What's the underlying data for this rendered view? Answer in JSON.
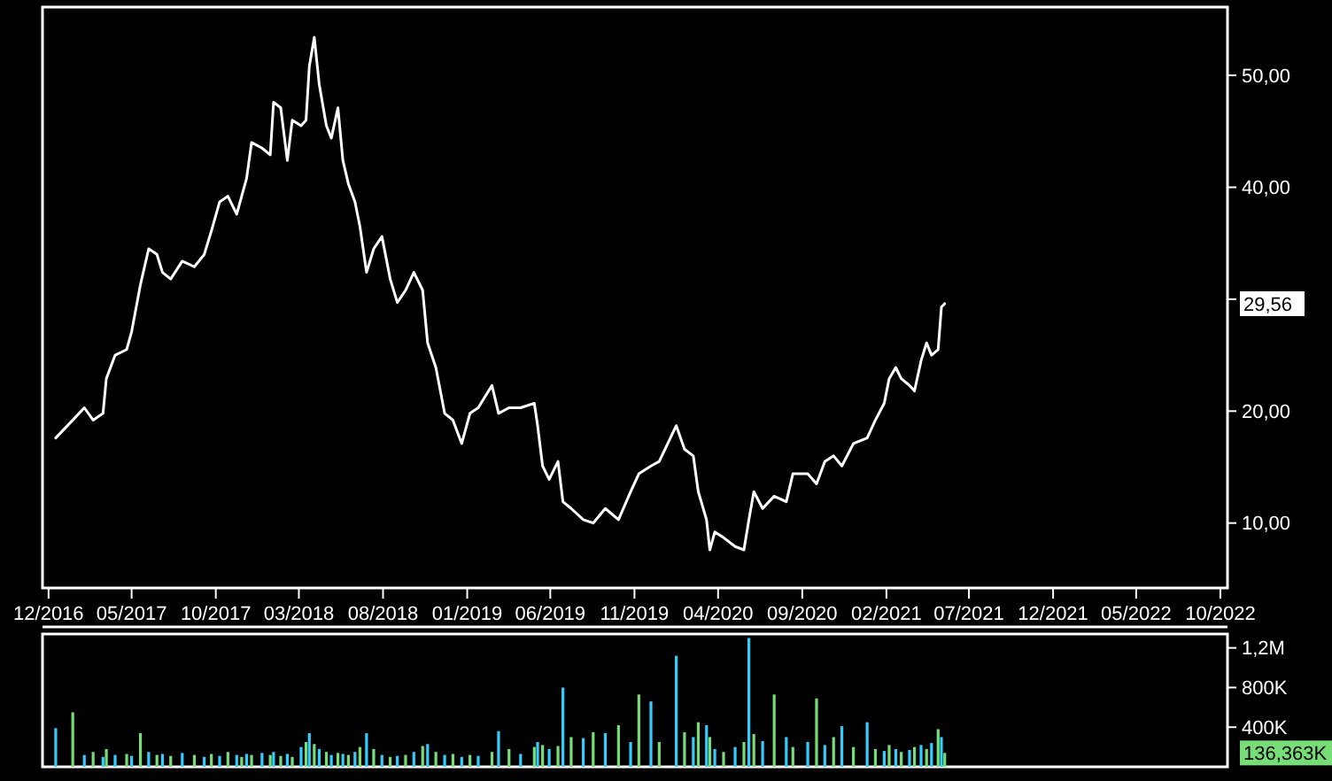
{
  "chart_data": [
    {
      "type": "line",
      "xlim": [
        "2016-11-20",
        "2022-10-14"
      ],
      "xticks": [
        {
          "value": "2016-12-01",
          "label": "12/2016"
        },
        {
          "value": "2017-05-01",
          "label": "05/2017"
        },
        {
          "value": "2017-10-01",
          "label": "10/2017"
        },
        {
          "value": "2018-03-01",
          "label": "03/2018"
        },
        {
          "value": "2018-08-01",
          "label": "08/2018"
        },
        {
          "value": "2019-01-01",
          "label": "01/2019"
        },
        {
          "value": "2019-06-01",
          "label": "06/2019"
        },
        {
          "value": "2019-11-01",
          "label": "11/2019"
        },
        {
          "value": "2020-04-01",
          "label": "04/2020"
        },
        {
          "value": "2020-09-01",
          "label": "09/2020"
        },
        {
          "value": "2021-02-01",
          "label": "02/2021"
        },
        {
          "value": "2021-07-01",
          "label": "07/2021"
        },
        {
          "value": "2021-12-01",
          "label": "12/2021"
        },
        {
          "value": "2022-05-01",
          "label": "05/2022"
        },
        {
          "value": "2022-10-01",
          "label": "10/2022"
        }
      ],
      "ylim": [
        4.2,
        56.1
      ],
      "yticks": [
        {
          "value": 10,
          "label": "10,00"
        },
        {
          "value": 20,
          "label": "20,00"
        },
        {
          "value": 30,
          "label": null
        },
        {
          "value": 40,
          "label": "40,00"
        },
        {
          "value": 50,
          "label": "50,00"
        }
      ],
      "grid": false,
      "annotations": [
        "29,56"
      ],
      "series": [
        {
          "color": "#ffffff",
          "x": [
            "2016-12-14",
            "2017-01-14",
            "2017-02-04",
            "2017-02-20",
            "2017-03-10",
            "2017-03-16",
            "2017-04-01",
            "2017-04-22",
            "2017-05-01",
            "2017-05-17",
            "2017-06-01",
            "2017-06-16",
            "2017-06-26",
            "2017-07-11",
            "2017-08-01",
            "2017-08-23",
            "2017-09-10",
            "2017-09-23",
            "2017-10-08",
            "2017-10-23",
            "2017-11-08",
            "2017-11-17",
            "2017-11-26",
            "2017-12-05",
            "2017-12-24",
            "2018-01-08",
            "2018-01-14",
            "2018-01-27",
            "2018-02-08",
            "2018-02-17",
            "2018-03-05",
            "2018-03-14",
            "2018-03-20",
            "2018-03-29",
            "2018-04-07",
            "2018-04-20",
            "2018-04-29",
            "2018-05-11",
            "2018-05-20",
            "2018-05-30",
            "2018-06-11",
            "2018-06-20",
            "2018-07-02",
            "2018-07-15",
            "2018-07-30",
            "2018-08-14",
            "2018-08-27",
            "2018-09-11",
            "2018-09-26",
            "2018-10-12",
            "2018-10-21",
            "2018-11-05",
            "2018-11-21",
            "2018-12-06",
            "2018-12-22",
            "2019-01-06",
            "2019-01-21",
            "2019-02-15",
            "2019-02-27",
            "2019-03-18",
            "2019-04-08",
            "2019-05-03",
            "2019-05-09",
            "2019-05-18",
            "2019-05-30",
            "2019-06-15",
            "2019-06-24",
            "2019-07-09",
            "2019-07-31",
            "2019-08-18",
            "2019-09-09",
            "2019-10-03",
            "2019-10-25",
            "2019-11-09",
            "2019-12-01",
            "2019-12-16",
            "2020-01-16",
            "2020-01-31",
            "2020-02-16",
            "2020-02-25",
            "2020-03-11",
            "2020-03-17",
            "2020-03-26",
            "2020-04-11",
            "2020-05-02",
            "2020-05-18",
            "2020-05-27",
            "2020-06-05",
            "2020-06-21",
            "2020-07-12",
            "2020-08-03",
            "2020-08-15",
            "2020-09-11",
            "2020-09-27",
            "2020-10-12",
            "2020-10-28",
            "2020-11-12",
            "2020-12-03",
            "2020-12-28",
            "2021-01-12",
            "2021-01-28",
            "2021-02-06",
            "2021-02-18",
            "2021-02-28",
            "2021-03-15",
            "2021-03-24",
            "2021-04-05",
            "2021-04-15",
            "2021-04-24",
            "2021-05-06",
            "2021-05-12",
            "2021-05-18"
          ],
          "values": [
            17.6,
            19.2,
            20.3,
            19.2,
            19.8,
            22.9,
            25.0,
            25.5,
            27.1,
            31.3,
            34.5,
            34.0,
            32.4,
            31.8,
            33.4,
            32.9,
            34.0,
            36.1,
            38.7,
            39.2,
            37.6,
            39.2,
            40.8,
            44.0,
            43.5,
            42.9,
            47.6,
            47.1,
            42.4,
            46.0,
            45.5,
            46.0,
            50.8,
            53.4,
            49.2,
            45.5,
            44.4,
            47.1,
            42.4,
            40.3,
            38.7,
            36.5,
            32.4,
            34.5,
            35.6,
            31.8,
            29.7,
            30.8,
            32.4,
            30.8,
            26.1,
            23.9,
            19.8,
            19.2,
            17.1,
            19.8,
            20.3,
            22.3,
            19.8,
            20.3,
            20.3,
            20.7,
            18.7,
            15.1,
            13.9,
            15.5,
            11.9,
            11.3,
            10.3,
            10.0,
            11.3,
            10.3,
            12.8,
            14.4,
            15.1,
            15.5,
            18.7,
            16.6,
            16.0,
            12.8,
            10.3,
            7.6,
            9.2,
            8.7,
            7.9,
            7.6,
            10.3,
            12.8,
            11.3,
            12.4,
            11.9,
            14.4,
            14.4,
            13.5,
            15.5,
            16.0,
            15.1,
            17.1,
            17.6,
            19.2,
            20.7,
            22.9,
            23.9,
            22.9,
            22.3,
            21.8,
            24.5,
            26.1,
            25.0,
            25.5,
            29.3,
            29.6
          ]
        }
      ]
    },
    {
      "type": "bar",
      "xlim": [
        "2016-11-20",
        "2022-10-14"
      ],
      "tick_labels": "y",
      "ylim": [
        0,
        1340000
      ],
      "yticks": [
        {
          "value": 400000,
          "label": "400K"
        },
        {
          "value": 800000,
          "label": "800K"
        },
        {
          "value": 1200000,
          "label": "1,2M"
        }
      ],
      "grid": false,
      "annotations": [
        "136,363K"
      ],
      "series": [
        {
          "x": [
            "2016-12-14",
            "2017-01-14",
            "2017-02-04",
            "2017-02-20",
            "2017-03-10",
            "2017-03-16",
            "2017-04-01",
            "2017-04-22",
            "2017-05-01",
            "2017-05-17",
            "2017-06-01",
            "2017-06-16",
            "2017-06-26",
            "2017-07-11",
            "2017-08-01",
            "2017-08-23",
            "2017-09-10",
            "2017-09-23",
            "2017-10-08",
            "2017-10-23",
            "2017-11-08",
            "2017-11-17",
            "2017-11-26",
            "2017-12-05",
            "2017-12-24",
            "2018-01-08",
            "2018-01-14",
            "2018-01-27",
            "2018-02-08",
            "2018-02-17",
            "2018-03-05",
            "2018-03-14",
            "2018-03-20",
            "2018-03-29",
            "2018-04-07",
            "2018-04-20",
            "2018-04-29",
            "2018-05-11",
            "2018-05-20",
            "2018-05-30",
            "2018-06-11",
            "2018-06-20",
            "2018-07-02",
            "2018-07-15",
            "2018-07-30",
            "2018-08-14",
            "2018-08-27",
            "2018-09-11",
            "2018-09-26",
            "2018-10-12",
            "2018-10-21",
            "2018-11-05",
            "2018-11-21",
            "2018-12-06",
            "2018-12-22",
            "2019-01-06",
            "2019-01-21",
            "2019-02-15",
            "2019-02-27",
            "2019-03-18",
            "2019-04-08",
            "2019-05-03",
            "2019-05-09",
            "2019-05-18",
            "2019-05-30",
            "2019-06-15",
            "2019-06-24",
            "2019-07-09",
            "2019-07-31",
            "2019-08-18",
            "2019-09-09",
            "2019-10-03",
            "2019-10-25",
            "2019-11-09",
            "2019-12-01",
            "2019-12-16",
            "2020-01-16",
            "2020-01-31",
            "2020-02-16",
            "2020-02-25",
            "2020-03-11",
            "2020-03-17",
            "2020-03-26",
            "2020-04-11",
            "2020-05-02",
            "2020-05-18",
            "2020-05-27",
            "2020-06-05",
            "2020-06-21",
            "2020-07-12",
            "2020-08-03",
            "2020-08-15",
            "2020-09-11",
            "2020-09-27",
            "2020-10-12",
            "2020-10-28",
            "2020-11-12",
            "2020-12-03",
            "2020-12-28",
            "2021-01-12",
            "2021-01-28",
            "2021-02-06",
            "2021-02-18",
            "2021-02-28",
            "2021-03-15",
            "2021-03-24",
            "2021-04-05",
            "2021-04-15",
            "2021-04-24",
            "2021-05-06",
            "2021-05-12",
            "2021-05-18"
          ],
          "values": [
            390000,
            550000,
            120000,
            150000,
            100000,
            180000,
            120000,
            130000,
            110000,
            340000,
            150000,
            120000,
            130000,
            110000,
            140000,
            120000,
            100000,
            130000,
            110000,
            150000,
            120000,
            100000,
            130000,
            120000,
            140000,
            120000,
            150000,
            110000,
            130000,
            100000,
            200000,
            250000,
            340000,
            230000,
            180000,
            150000,
            120000,
            140000,
            130000,
            120000,
            150000,
            200000,
            340000,
            180000,
            120000,
            100000,
            110000,
            120000,
            150000,
            210000,
            230000,
            150000,
            120000,
            130000,
            100000,
            120000,
            110000,
            150000,
            360000,
            180000,
            130000,
            200000,
            250000,
            220000,
            180000,
            210000,
            800000,
            300000,
            290000,
            350000,
            340000,
            420000,
            250000,
            730000,
            660000,
            250000,
            1120000,
            350000,
            300000,
            450000,
            420000,
            300000,
            180000,
            150000,
            200000,
            250000,
            1300000,
            330000,
            260000,
            730000,
            300000,
            200000,
            250000,
            690000,
            220000,
            300000,
            410000,
            200000,
            450000,
            180000,
            160000,
            220000,
            180000,
            150000,
            170000,
            200000,
            220000,
            180000,
            240000,
            380000,
            300000,
            140000
          ],
          "colors": [
            "#33ccff",
            "#77dd77",
            "#33ccff",
            "#77dd77",
            "#33ccff",
            "#77dd77",
            "#33ccff",
            "#77dd77",
            "#33ccff",
            "#77dd77",
            "#33ccff",
            "#77dd77",
            "#33ccff",
            "#77dd77",
            "#33ccff",
            "#77dd77",
            "#33ccff",
            "#77dd77",
            "#33ccff",
            "#77dd77",
            "#33ccff",
            "#77dd77",
            "#33ccff",
            "#77dd77",
            "#33ccff",
            "#77dd77",
            "#33ccff",
            "#77dd77",
            "#33ccff",
            "#77dd77",
            "#33ccff",
            "#77dd77",
            "#33ccff",
            "#77dd77",
            "#33ccff",
            "#77dd77",
            "#33ccff",
            "#77dd77",
            "#33ccff",
            "#77dd77",
            "#33ccff",
            "#77dd77",
            "#33ccff",
            "#77dd77",
            "#33ccff",
            "#77dd77",
            "#33ccff",
            "#77dd77",
            "#33ccff",
            "#77dd77",
            "#33ccff",
            "#77dd77",
            "#33ccff",
            "#77dd77",
            "#33ccff",
            "#77dd77",
            "#33ccff",
            "#77dd77",
            "#33ccff",
            "#77dd77",
            "#33ccff",
            "#77dd77",
            "#33ccff",
            "#77dd77",
            "#33ccff",
            "#77dd77",
            "#33ccff",
            "#77dd77",
            "#33ccff",
            "#77dd77",
            "#33ccff",
            "#77dd77",
            "#33ccff",
            "#77dd77",
            "#33ccff",
            "#77dd77",
            "#33ccff",
            "#77dd77",
            "#33ccff",
            "#77dd77",
            "#33ccff",
            "#77dd77",
            "#33ccff",
            "#77dd77",
            "#33ccff",
            "#77dd77",
            "#33ccff",
            "#77dd77",
            "#33ccff",
            "#77dd77",
            "#33ccff",
            "#77dd77",
            "#33ccff",
            "#77dd77",
            "#33ccff",
            "#77dd77",
            "#33ccff",
            "#77dd77",
            "#33ccff",
            "#77dd77",
            "#33ccff",
            "#77dd77",
            "#33ccff",
            "#77dd77",
            "#33ccff",
            "#77dd77",
            "#33ccff",
            "#77dd77",
            "#33ccff",
            "#77dd77",
            "#33ccff",
            "#77dd77"
          ]
        }
      ]
    }
  ]
}
